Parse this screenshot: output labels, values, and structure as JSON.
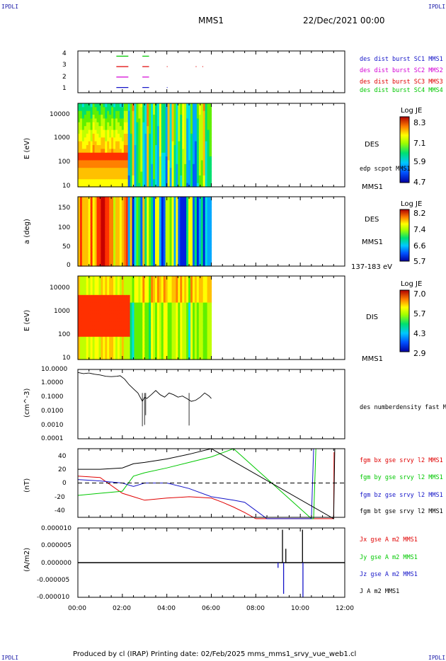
{
  "corners": {
    "top_left": "IPDLI",
    "top_right": "IPDLI",
    "bottom_left": "IPDLI",
    "bottom_right": "IPDLI"
  },
  "header": {
    "spacecraft": "MMS1",
    "date": "22/Dec/2021 00:00"
  },
  "footer": "Produced by cl (IRAP)   Printing date: 02/Feb/2025   mms_mms1_srvy_vue_web1.cl",
  "colors": {
    "blue": "#1414c8",
    "magenta": "#d400d4",
    "red": "#e00000",
    "green": "#00c800",
    "black": "#000000"
  },
  "chart_data": [
    {
      "type": "scatter",
      "panel": "availability",
      "yticks": [
        "1",
        "2",
        "3",
        "4"
      ],
      "legend": [
        {
          "name": "des dist burst SC1 MMS1",
          "color": "#1414c8"
        },
        {
          "name": "des dist burst SC2 MMS2",
          "color": "#d400d4"
        },
        {
          "name": "des dist burst SC3 MMS3",
          "color": "#e00000"
        },
        {
          "name": "des dist burst SC4 MMS4",
          "color": "#00c800"
        }
      ],
      "segments": [
        {
          "sc": 4,
          "from": 1.73,
          "to": 2.27,
          "color": "#00c800"
        },
        {
          "sc": 4,
          "from": 2.9,
          "to": 3.2,
          "color": "#00c800"
        },
        {
          "sc": 3,
          "from": 1.73,
          "to": 2.27,
          "color": "#e00000"
        },
        {
          "sc": 3,
          "from": 2.9,
          "to": 3.2,
          "color": "#e00000"
        },
        {
          "sc": 3,
          "from": 4.0,
          "to": 4.03,
          "color": "#e00000"
        },
        {
          "sc": 3,
          "from": 5.3,
          "to": 5.33,
          "color": "#e00000"
        },
        {
          "sc": 3,
          "from": 5.6,
          "to": 5.63,
          "color": "#e00000"
        },
        {
          "sc": 2,
          "from": 1.73,
          "to": 2.27,
          "color": "#d400d4"
        },
        {
          "sc": 2,
          "from": 2.9,
          "to": 3.2,
          "color": "#d400d4"
        },
        {
          "sc": 1,
          "from": 1.73,
          "to": 2.27,
          "color": "#1414c8"
        },
        {
          "sc": 1,
          "from": 2.9,
          "to": 3.2,
          "color": "#1414c8"
        },
        {
          "sc": 1,
          "from": 4.0,
          "to": 4.03,
          "color": "#1414c8"
        }
      ]
    },
    {
      "type": "heatmap",
      "panel": "des-energy",
      "ylabel": "E (eV)",
      "yticks": [
        "10",
        "100",
        "1000",
        "10000"
      ],
      "right_labels": [
        "DES",
        "edp scpot MMS1",
        "MMS1"
      ],
      "colorbar": {
        "title": "Log JE",
        "ticks": [
          "8.3",
          "7.1",
          "5.9",
          "4.7"
        ]
      },
      "data_end_hour": 6.0
    },
    {
      "type": "heatmap",
      "panel": "des-pitch",
      "ylabel": "a (deg)",
      "yticks": [
        "0",
        "50",
        "100",
        "150"
      ],
      "right_labels": [
        "DES",
        "MMS1",
        "137-183 eV"
      ],
      "colorbar": {
        "title": "Log JE",
        "ticks": [
          "8.2",
          "7.4",
          "6.6",
          "5.7"
        ]
      },
      "data_end_hour": 6.0
    },
    {
      "type": "heatmap",
      "panel": "dis-energy",
      "ylabel": "E (eV)",
      "yticks": [
        "10",
        "100",
        "1000",
        "10000"
      ],
      "right_labels": [
        "DIS",
        "MMS1"
      ],
      "colorbar": {
        "title": "Log JE",
        "ticks": [
          "7.0",
          "5.7",
          "4.3",
          "2.9"
        ]
      },
      "data_end_hour": 6.0
    },
    {
      "type": "line",
      "panel": "density",
      "ylabel": "(cm^-3)",
      "yticks": [
        "0.0001",
        "0.0010",
        "0.0100",
        "0.1000",
        "1.0000",
        "10.0000"
      ],
      "ylim": [
        0.0001,
        10
      ],
      "log": true,
      "legend": [
        {
          "name": "des numberdensity fast M",
          "color": "#000000"
        }
      ],
      "x": [
        0,
        0.25,
        0.5,
        0.75,
        1.0,
        1.25,
        1.5,
        1.75,
        1.9,
        2.1,
        2.3,
        2.5,
        2.7,
        2.9,
        3.0,
        3.1,
        3.3,
        3.5,
        3.7,
        3.9,
        4.1,
        4.3,
        4.5,
        4.7,
        4.9,
        5.1,
        5.3,
        5.5,
        5.7,
        5.9,
        6.0
      ],
      "y": [
        6,
        5,
        5.5,
        4.5,
        4,
        3.2,
        3,
        3.2,
        3.5,
        2,
        0.8,
        0.4,
        0.2,
        0.05,
        0.1,
        0.08,
        0.15,
        0.3,
        0.15,
        0.1,
        0.2,
        0.15,
        0.1,
        0.12,
        0.08,
        0.05,
        0.06,
        0.1,
        0.2,
        0.12,
        0.08
      ]
    },
    {
      "type": "line",
      "panel": "magnetic-field",
      "ylabel": "(nT)",
      "yticks": [
        "-40",
        "-20",
        "0",
        "20",
        "40"
      ],
      "ylim": [
        -50,
        50
      ],
      "legend": [
        {
          "name": "fgm bx gse srvy l2 MMS1",
          "color": "#e00000"
        },
        {
          "name": "fgm by gse srvy l2 MMS1",
          "color": "#00c800"
        },
        {
          "name": "fgm bz gse srvy l2 MMS1",
          "color": "#1414c8"
        },
        {
          "name": "fgm bt gse srvy l2 MMS1",
          "color": "#000000"
        }
      ],
      "series": [
        {
          "name": "fgm bx gse srvy l2 MMS1",
          "color": "#e00000",
          "x": [
            0,
            1,
            2,
            2.5,
            3,
            4,
            5,
            6,
            6.5,
            7,
            7.5,
            8.0,
            11.5,
            11.52
          ],
          "y": [
            10,
            8,
            -15,
            -20,
            -25,
            -22,
            -20,
            -22,
            -28,
            -35,
            -43,
            -52,
            -52,
            45
          ]
        },
        {
          "name": "fgm by gse srvy l2 MMS1",
          "color": "#00c800",
          "x": [
            0,
            1,
            2,
            2.5,
            3,
            4,
            5,
            6,
            6.5,
            7.0,
            10.5,
            10.6,
            10.7
          ],
          "y": [
            -18,
            -15,
            -12,
            10,
            15,
            22,
            30,
            38,
            44,
            50,
            -52,
            -52,
            50
          ]
        },
        {
          "name": "fgm bz gse srvy l2 MMS1",
          "color": "#1414c8",
          "x": [
            0,
            1,
            2,
            2.5,
            3,
            4,
            5,
            6,
            7,
            7.5,
            8,
            8.5,
            10.5,
            10.6
          ],
          "y": [
            5,
            3,
            0,
            -5,
            0,
            0,
            -8,
            -20,
            -25,
            -28,
            -40,
            -52,
            -52,
            50
          ]
        },
        {
          "name": "fgm bt gse srvy l2 MMS1",
          "color": "#000000",
          "x": [
            0,
            1,
            2,
            2.5,
            3,
            4,
            5,
            6,
            11.5,
            11.55
          ],
          "y": [
            20,
            20,
            22,
            28,
            30,
            35,
            42,
            50,
            -52,
            50
          ]
        }
      ]
    },
    {
      "type": "line",
      "panel": "current",
      "ylabel": "(A/m2)",
      "yticks": [
        "-0.000010",
        "-0.000005",
        "0.000000",
        "0.000005",
        "0.000010"
      ],
      "ylim": [
        -1e-05,
        1e-05
      ],
      "xlabel": "",
      "xticks": [
        "00:00",
        "02:00",
        "04:00",
        "06:00",
        "08:00",
        "10:00",
        "12:00"
      ],
      "legend": [
        {
          "name": "Jx gse A m2 MMS1",
          "color": "#e00000"
        },
        {
          "name": "Jy gse A m2 MMS1",
          "color": "#00c800"
        },
        {
          "name": "Jz gse A m2 MMS1",
          "color": "#1414c8"
        },
        {
          "name": "J A m2 MMS1",
          "color": "#000000"
        }
      ],
      "spikes": [
        {
          "x": 9.2,
          "y": 9.5e-06,
          "color": "#000000"
        },
        {
          "x": 9.25,
          "y": -9e-06,
          "color": "#1414c8"
        },
        {
          "x": 9.35,
          "y": 4e-06,
          "color": "#000000"
        },
        {
          "x": 10.1,
          "y": 9.5e-06,
          "color": "#000000"
        },
        {
          "x": 10.12,
          "y": -1e-05,
          "color": "#1414c8"
        },
        {
          "x": 9.0,
          "y": -1.5e-06,
          "color": "#1414c8"
        }
      ]
    }
  ]
}
